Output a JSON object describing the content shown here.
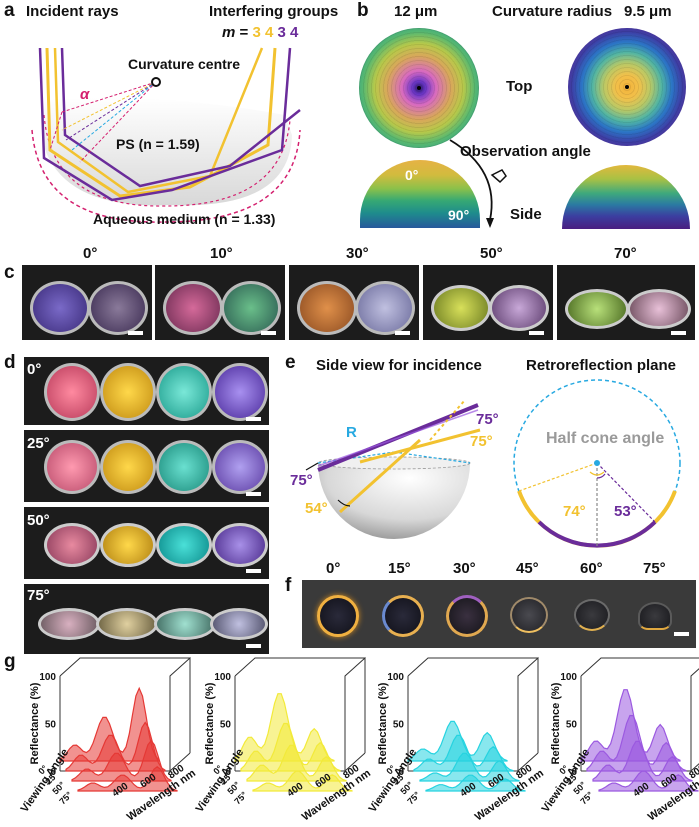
{
  "panels": {
    "a": "a",
    "b": "b",
    "c": "c",
    "d": "d",
    "e": "e",
    "f": "f",
    "g": "g"
  },
  "a": {
    "incident_rays": "Incident rays",
    "interfering_groups": "Interfering groups",
    "m_label": "m",
    "m_eq": "=",
    "m_gold_nums": "3 4",
    "m_purple_nums": "3 4",
    "curvature_centre": "Curvature centre",
    "alpha": "α",
    "ps_label": "PS (n = 1.59)",
    "aqueous_label": "Aqueous medium (n = 1.33)"
  },
  "b": {
    "radius_left": "12 μm",
    "curvature_radius": "Curvature radius",
    "radius_right": "9.5 μm",
    "top": "Top",
    "observation_angle": "Observation angle",
    "angle_0": "0°",
    "angle_90": "90°",
    "side": "Side"
  },
  "c": {
    "angles": [
      "0°",
      "10°",
      "30°",
      "50°",
      "70°"
    ]
  },
  "d": {
    "angles": [
      "0°",
      "25°",
      "50°",
      "75°"
    ]
  },
  "e": {
    "side_view_title": "Side view for incidence",
    "retro_title": "Retroreflection plane",
    "R": "R",
    "purple_75_top": "75°",
    "gold_75": "75°",
    "purple_75_left": "75°",
    "gold_54": "54°",
    "half_cone": "Half cone angle",
    "gold_74": "74°",
    "purple_53": "53°"
  },
  "f": {
    "angles": [
      "0°",
      "15°",
      "30°",
      "45°",
      "60°",
      "75°"
    ]
  },
  "g": {
    "charts": [
      {
        "color": "#e53935",
        "name": "red"
      },
      {
        "color": "#f2ea3a",
        "name": "yellow"
      },
      {
        "color": "#27d3e0",
        "name": "cyan"
      },
      {
        "color": "#9b59e0",
        "name": "purple"
      }
    ],
    "ylabel": "Reflectance (%)",
    "xlabel": "Wavelength nm",
    "zlabel": "Viewing Angle",
    "yticks": [
      "0",
      "50",
      "100"
    ],
    "xticks": [
      "400",
      "600",
      "800"
    ],
    "zticks": [
      "0°",
      "25°",
      "50°",
      "75°"
    ]
  },
  "colors": {
    "gold": "#f2c230",
    "purple": "#6a2c9a",
    "magenta": "#d4206f",
    "blue": "#27a9e1",
    "scalebar": "#ffffff"
  }
}
